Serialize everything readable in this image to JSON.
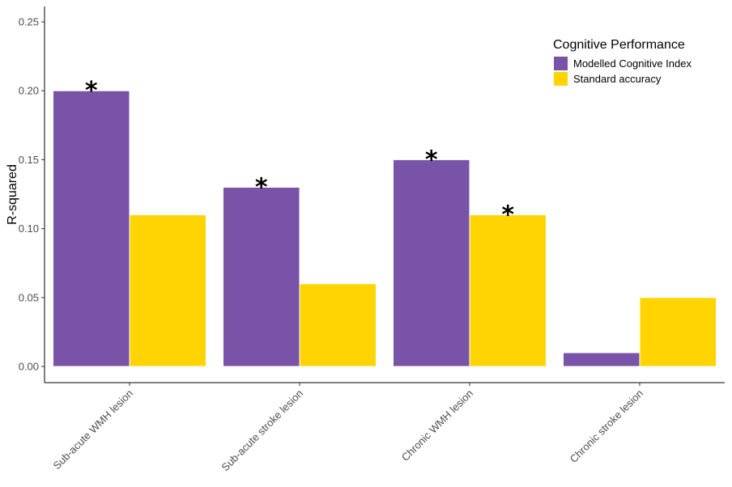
{
  "chart_data": {
    "type": "bar",
    "title": "",
    "xlabel": "",
    "ylabel": "R-squared",
    "ylim": [
      0,
      0.25
    ],
    "yticks": [
      "0.00",
      "0.05",
      "0.10",
      "0.15",
      "0.20",
      "0.25"
    ],
    "grid": false,
    "legend": {
      "title": "Cognitive Performance",
      "placement": "top-right"
    },
    "categories": [
      "Sub-acute WMH lesion",
      "Sub-acute stroke lesion",
      "Chronic WMH lesion",
      "Chronic stroke lesion"
    ],
    "series": [
      {
        "name": "Modelled Cognitive Index",
        "color": "#7853A8",
        "values": [
          0.2,
          0.13,
          0.15,
          0.01
        ]
      },
      {
        "name": "Standard accuracy",
        "color": "#FFD400",
        "values": [
          0.11,
          0.06,
          0.11,
          0.05
        ]
      }
    ],
    "annotations": [
      {
        "text": "*",
        "category_index": 0,
        "series_index": 0
      },
      {
        "text": "*",
        "category_index": 1,
        "series_index": 0
      },
      {
        "text": "*",
        "category_index": 2,
        "series_index": 0
      },
      {
        "text": "*",
        "category_index": 2,
        "series_index": 1
      }
    ]
  }
}
